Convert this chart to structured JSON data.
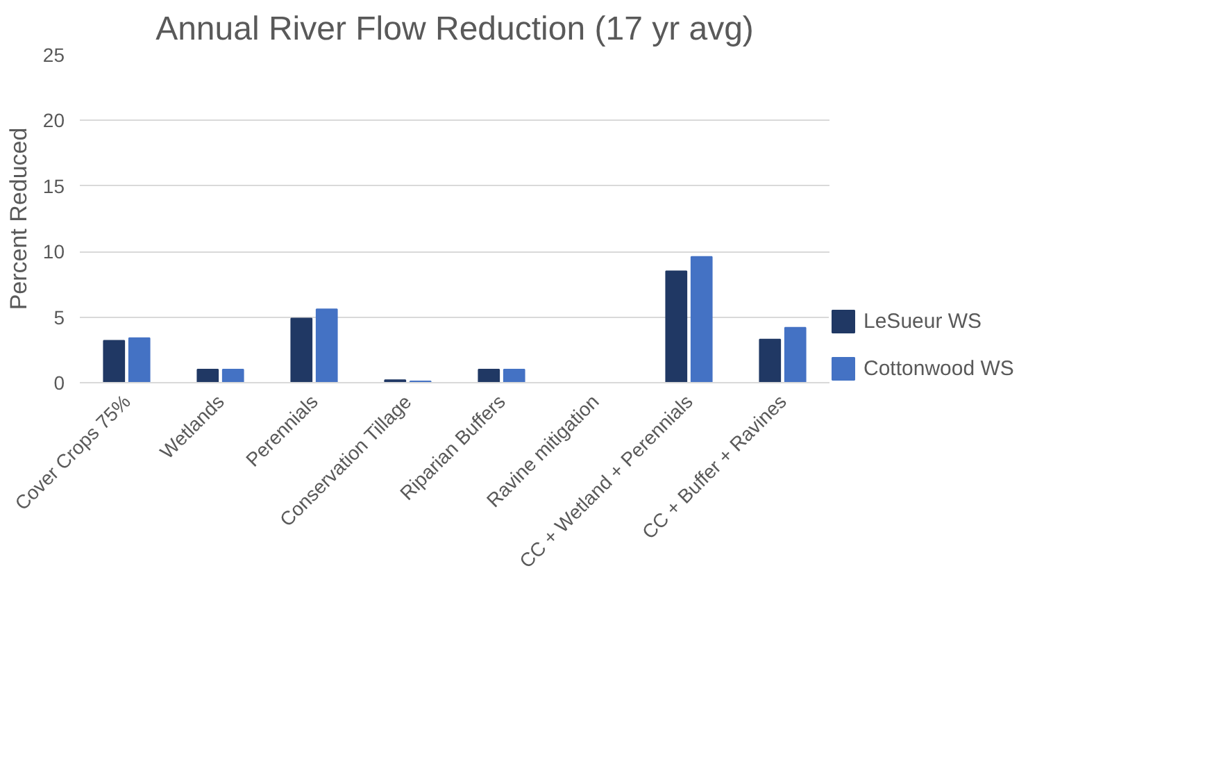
{
  "chart_data": {
    "type": "bar",
    "title": "Annual River Flow Reduction (17 yr avg)",
    "ylabel": "Percent Reduced",
    "categories": [
      "Cover Crops 75%",
      "Wetlands",
      "Perennials",
      "Conservation Tillage",
      "Riparian Buffers",
      "Ravine mitigation",
      "CC + Wetland + Perennials",
      "CC + Buffer + Ravines"
    ],
    "series": [
      {
        "name": "LeSueur WS",
        "color": "#203864",
        "values": [
          3.2,
          1.0,
          4.9,
          0.2,
          1.0,
          0,
          8.5,
          3.3
        ]
      },
      {
        "name": "Cottonwood WS",
        "color": "#4472c4",
        "values": [
          3.4,
          1.0,
          5.6,
          0.1,
          1.0,
          0,
          9.6,
          4.2
        ]
      }
    ],
    "ylim": [
      0,
      25
    ],
    "yticks": [
      0,
      5,
      10,
      15,
      20,
      25
    ],
    "grid": "y",
    "legend": "right"
  }
}
